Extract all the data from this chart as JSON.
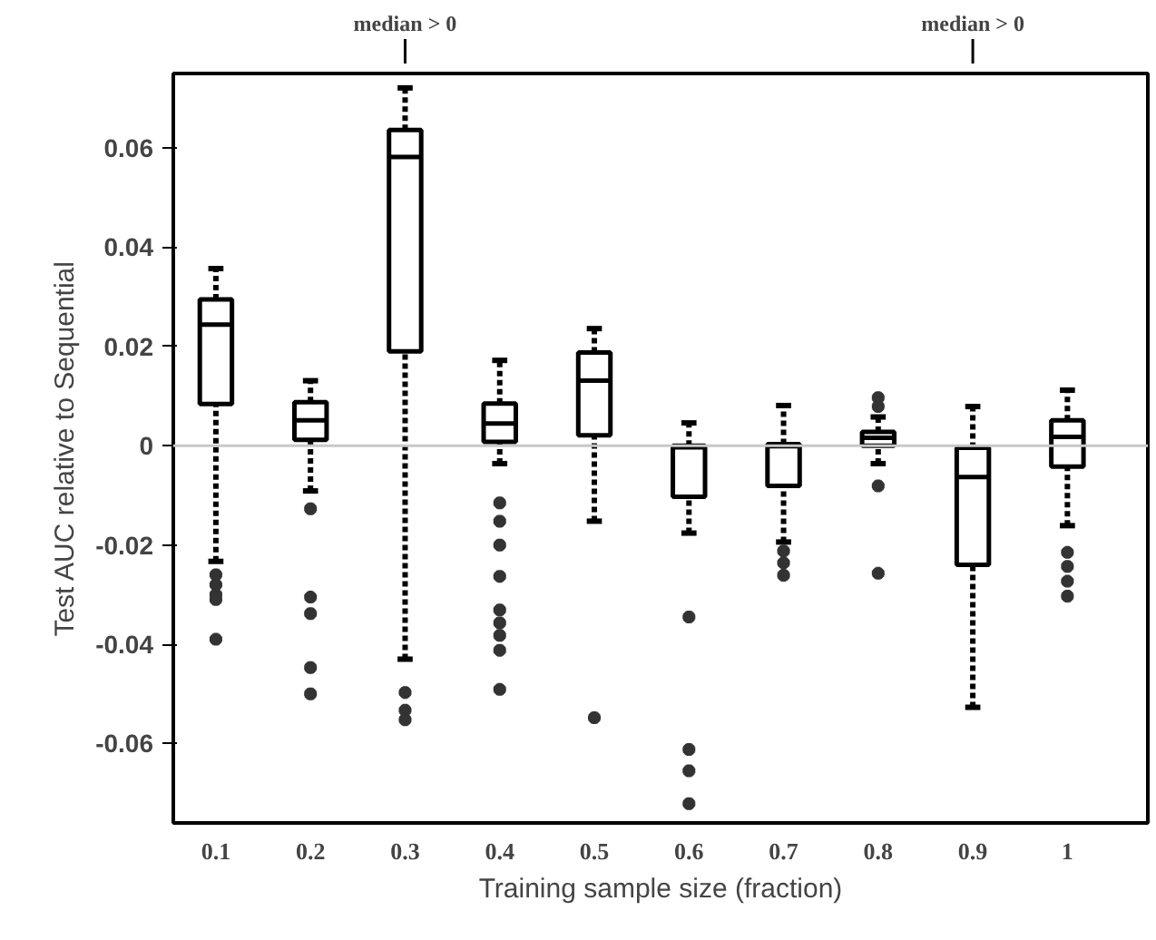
{
  "chart_data": {
    "type": "box",
    "xlabel": "Training sample size (fraction)",
    "ylabel": "Test AUC relative to Sequential",
    "categories": [
      "0.1",
      "0.2",
      "0.3",
      "0.4",
      "0.5",
      "0.6",
      "0.7",
      "0.8",
      "0.9",
      "1"
    ],
    "boxes": [
      {
        "low": -0.0233,
        "q1": 0.0084,
        "median": 0.0244,
        "q3": 0.0295,
        "high": 0.0357,
        "outliers": [
          -0.026,
          -0.028,
          -0.03,
          -0.031,
          -0.039
        ]
      },
      {
        "low": -0.0091,
        "q1": 0.0012,
        "median": 0.0051,
        "q3": 0.0088,
        "high": 0.0131,
        "outliers": [
          -0.0127,
          -0.0305,
          -0.0338,
          -0.0447,
          -0.05
        ]
      },
      {
        "low": -0.043,
        "q1": 0.019,
        "median": 0.0582,
        "q3": 0.0636,
        "high": 0.0721,
        "outliers": [
          -0.0497,
          -0.0533,
          -0.0552
        ]
      },
      {
        "low": -0.0036,
        "q1": 0.0008,
        "median": 0.0045,
        "q3": 0.0085,
        "high": 0.0172,
        "outliers": [
          -0.0115,
          -0.0152,
          -0.02,
          -0.0263,
          -0.0331,
          -0.0357,
          -0.0382,
          -0.0412,
          -0.0491
        ]
      },
      {
        "low": -0.0152,
        "q1": 0.0021,
        "median": 0.0131,
        "q3": 0.0188,
        "high": 0.0236,
        "outliers": [
          -0.0548
        ]
      },
      {
        "low": -0.0176,
        "q1": -0.0103,
        "median": -0.0003,
        "q3": 0.0,
        "high": 0.0046,
        "outliers": [
          -0.0345,
          -0.0612,
          -0.0655,
          -0.0721
        ]
      },
      {
        "low": -0.0194,
        "q1": -0.0081,
        "median": -0.0001,
        "q3": 0.0003,
        "high": 0.0081,
        "outliers": [
          -0.0212,
          -0.0236,
          -0.0261
        ]
      },
      {
        "low": -0.0036,
        "q1": 0.0,
        "median": 0.0016,
        "q3": 0.0028,
        "high": 0.0058,
        "outliers": [
          0.0097,
          0.0079,
          -0.0081,
          -0.0257
        ]
      },
      {
        "low": -0.0527,
        "q1": -0.024,
        "median": -0.0063,
        "q3": -0.0004,
        "high": 0.0079
      },
      {
        "low": -0.0161,
        "q1": -0.0042,
        "median": 0.0018,
        "q3": 0.0051,
        "high": 0.0112,
        "outliers": [
          -0.0215,
          -0.0243,
          -0.0273,
          -0.0303
        ]
      }
    ],
    "ylim": [
      -0.076,
      0.075
    ],
    "yticks": [
      {
        "value": -0.06,
        "label": "-0.06"
      },
      {
        "value": -0.04,
        "label": "-0.04"
      },
      {
        "value": -0.02,
        "label": "-0.02"
      },
      0,
      {
        "value": 0.02,
        "label": "0.02"
      },
      {
        "value": 0.04,
        "label": "0.04"
      },
      {
        "value": 0.06,
        "label": "0.06"
      }
    ],
    "ref_lines": [
      {
        "axis": "y",
        "value": 0,
        "label": null,
        "color": "#c8c8c8"
      }
    ],
    "annotations": [
      {
        "text": "median > 0",
        "x": "0.3"
      },
      {
        "text": "median > 0",
        "x": "0.9"
      }
    ],
    "marker": "star",
    "grid": false
  }
}
